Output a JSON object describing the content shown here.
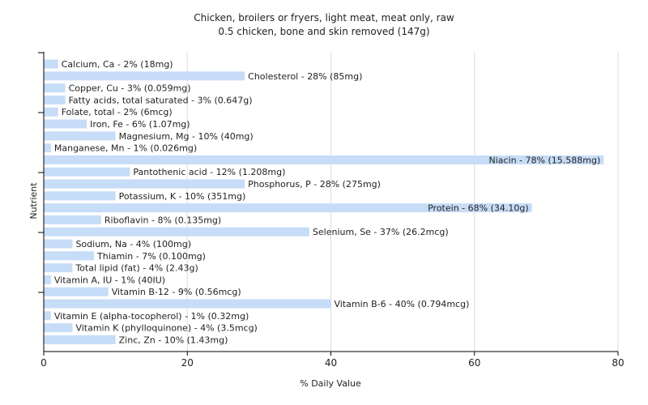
{
  "chart_data": {
    "type": "bar",
    "orientation": "horizontal",
    "title": "Chicken, broilers or fryers, light meat, meat only, raw",
    "subtitle": "0.5 chicken, bone and skin removed (147g)",
    "xlabel": "% Daily Value",
    "ylabel": "Nutrient",
    "xlim": [
      0,
      80
    ],
    "xticks": [
      0,
      20,
      40,
      60,
      80
    ],
    "grid": true,
    "bar_color": "#c6dcf7",
    "categories": [
      "Calcium, Ca",
      "Cholesterol",
      "Copper, Cu",
      "Fatty acids, total saturated",
      "Folate, total",
      "Iron, Fe",
      "Magnesium, Mg",
      "Manganese, Mn",
      "Niacin",
      "Pantothenic acid",
      "Phosphorus, P",
      "Potassium, K",
      "Protein",
      "Riboflavin",
      "Selenium, Se",
      "Sodium, Na",
      "Thiamin",
      "Total lipid (fat)",
      "Vitamin A, IU",
      "Vitamin B-12",
      "Vitamin B-6",
      "Vitamin E (alpha-tocopherol)",
      "Vitamin K (phylloquinone)",
      "Zinc, Zn"
    ],
    "values": [
      2,
      28,
      3,
      3,
      2,
      6,
      10,
      1,
      78,
      12,
      28,
      10,
      68,
      8,
      37,
      4,
      7,
      4,
      1,
      9,
      40,
      1,
      4,
      10
    ],
    "labels": [
      "Calcium, Ca - 2% (18mg)",
      "Cholesterol - 28% (85mg)",
      "Copper, Cu - 3% (0.059mg)",
      "Fatty acids, total saturated - 3% (0.647g)",
      "Folate, total - 2% (6mcg)",
      "Iron, Fe - 6% (1.07mg)",
      "Magnesium, Mg - 10% (40mg)",
      "Manganese, Mn - 1% (0.026mg)",
      "Niacin - 78% (15.588mg)",
      "Pantothenic acid - 12% (1.208mg)",
      "Phosphorus, P - 28% (275mg)",
      "Potassium, K - 10% (351mg)",
      "Protein - 68% (34.10g)",
      "Riboflavin - 8% (0.135mg)",
      "Selenium, Se - 37% (26.2mcg)",
      "Sodium, Na - 4% (100mg)",
      "Thiamin - 7% (0.100mg)",
      "Total lipid (fat) - 4% (2.43g)",
      "Vitamin A, IU - 1% (40IU)",
      "Vitamin B-12 - 9% (0.56mcg)",
      "Vitamin B-6 - 40% (0.794mcg)",
      "Vitamin E (alpha-tocopherol) - 1% (0.32mg)",
      "Vitamin K (phylloquinone) - 4% (3.5mcg)",
      "Zinc, Zn - 10% (1.43mg)"
    ]
  }
}
